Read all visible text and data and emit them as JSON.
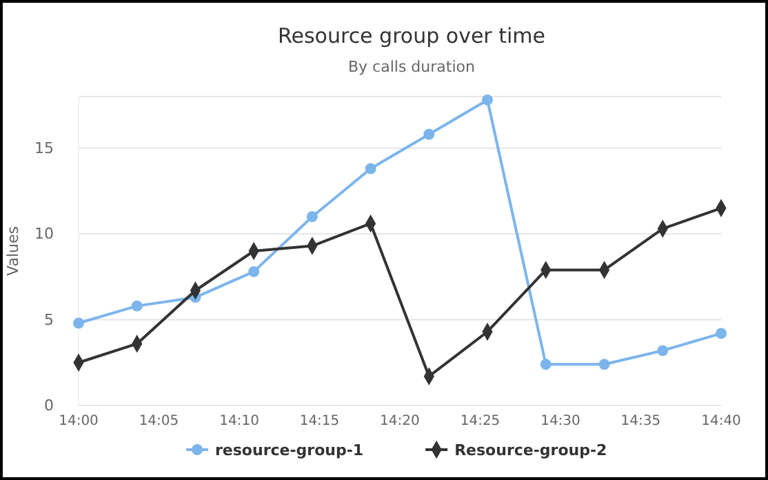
{
  "chart_data": {
    "type": "line",
    "title": "Resource group over time",
    "subtitle": "By calls duration",
    "ylabel": "Values",
    "x": [
      14,
      14.0606,
      14.1212,
      14.1818,
      14.2424,
      14.303,
      14.3636,
      14.4242,
      14.4848,
      14.5455,
      14.6061,
      14.6667
    ],
    "series": [
      {
        "name": "resource-group-1",
        "color": "#7cb5ec",
        "marker": "circle",
        "values": [
          4.8,
          5.8,
          6.3,
          7.8,
          11.0,
          13.8,
          15.8,
          17.8,
          2.4,
          2.4,
          3.2,
          4.2
        ]
      },
      {
        "name": "Resource-group-2",
        "color": "#333333",
        "marker": "diamond",
        "values": [
          2.5,
          3.6,
          6.7,
          9.0,
          9.3,
          10.6,
          1.7,
          4.3,
          7.9,
          7.9,
          10.3,
          11.5
        ]
      }
    ],
    "xlim": [
      14,
      14.6667
    ],
    "xticks": [
      {
        "value": 14,
        "label": "14:00"
      },
      {
        "value": 14.0833,
        "label": "14:05"
      },
      {
        "value": 14.1667,
        "label": "14:10"
      },
      {
        "value": 14.25,
        "label": "14:15"
      },
      {
        "value": 14.3333,
        "label": "14:20"
      },
      {
        "value": 14.4167,
        "label": "14:25"
      },
      {
        "value": 14.5,
        "label": "14:30"
      },
      {
        "value": 14.5833,
        "label": "14:35"
      },
      {
        "value": 14.6667,
        "label": "14:40"
      }
    ],
    "ylim": [
      0,
      18
    ],
    "yticks": [
      0,
      5,
      10,
      15
    ],
    "grid": "y",
    "legend": "bottom"
  }
}
